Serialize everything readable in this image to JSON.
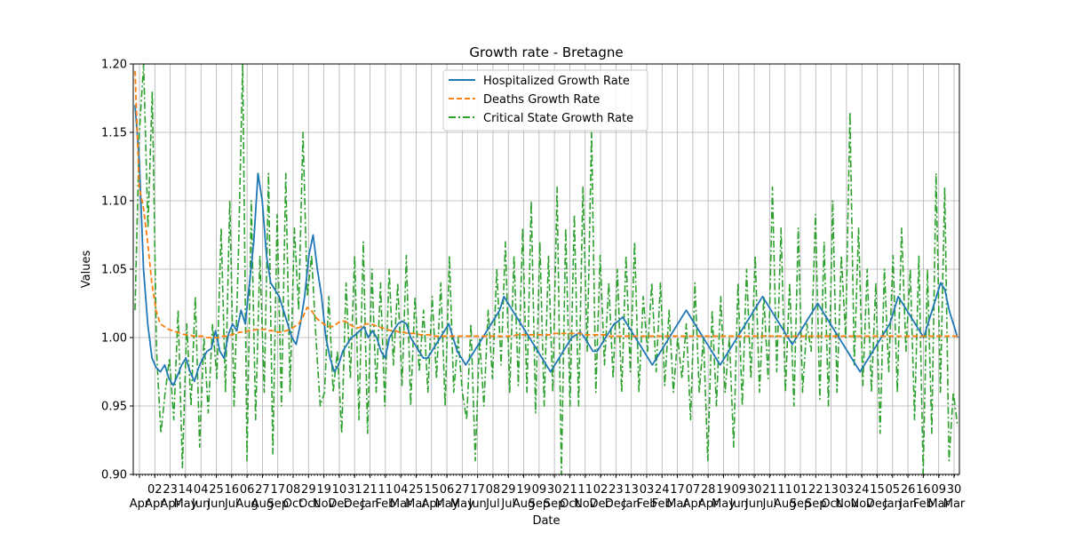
{
  "chart_data": {
    "type": "line",
    "title": "Growth rate - Bretagne",
    "xlabel": "Date",
    "ylabel": "Values",
    "ylim": [
      0.9,
      1.2
    ],
    "yticks": [
      "0.90",
      "0.95",
      "1.00",
      "1.05",
      "1.10",
      "1.15",
      "1.20"
    ],
    "grid": true,
    "legend_position": "top-center",
    "x_tick_labels": [
      {
        "day": "",
        "month": "Apr"
      },
      {
        "day": "02",
        "month": "Apr"
      },
      {
        "day": "23",
        "month": "Apr"
      },
      {
        "day": "14",
        "month": "May"
      },
      {
        "day": "04",
        "month": "Jun"
      },
      {
        "day": "25",
        "month": "Jun"
      },
      {
        "day": "16",
        "month": "Jul"
      },
      {
        "day": "06",
        "month": "Aug"
      },
      {
        "day": "27",
        "month": "Aug"
      },
      {
        "day": "17",
        "month": "Sep"
      },
      {
        "day": "08",
        "month": "Oct"
      },
      {
        "day": "29",
        "month": "Oct"
      },
      {
        "day": "19",
        "month": "Nov"
      },
      {
        "day": "10",
        "month": "Dec"
      },
      {
        "day": "31",
        "month": "Dec"
      },
      {
        "day": "21",
        "month": "Jan"
      },
      {
        "day": "11",
        "month": "Feb"
      },
      {
        "day": "04",
        "month": "Mar"
      },
      {
        "day": "25",
        "month": "Mar"
      },
      {
        "day": "15",
        "month": "Apr"
      },
      {
        "day": "06",
        "month": "May"
      },
      {
        "day": "27",
        "month": "May"
      },
      {
        "day": "17",
        "month": "Jun"
      },
      {
        "day": "08",
        "month": "Jul"
      },
      {
        "day": "29",
        "month": "Jul"
      },
      {
        "day": "19",
        "month": "Aug"
      },
      {
        "day": "09",
        "month": "Sep"
      },
      {
        "day": "30",
        "month": "Sep"
      },
      {
        "day": "21",
        "month": "Oct"
      },
      {
        "day": "11",
        "month": "Nov"
      },
      {
        "day": "02",
        "month": "Dec"
      },
      {
        "day": "23",
        "month": "Dec"
      },
      {
        "day": "13",
        "month": "Jan"
      },
      {
        "day": "03",
        "month": "Feb"
      },
      {
        "day": "24",
        "month": "Feb"
      },
      {
        "day": "17",
        "month": "Mar"
      },
      {
        "day": "07",
        "month": "Apr"
      },
      {
        "day": "28",
        "month": "Apr"
      },
      {
        "day": "19",
        "month": "May"
      },
      {
        "day": "09",
        "month": "Jun"
      },
      {
        "day": "30",
        "month": "Jun"
      },
      {
        "day": "21",
        "month": "Jul"
      },
      {
        "day": "11",
        "month": "Aug"
      },
      {
        "day": "01",
        "month": "Sep"
      },
      {
        "day": "22",
        "month": "Sep"
      },
      {
        "day": "13",
        "month": "Oct"
      },
      {
        "day": "03",
        "month": "Nov"
      },
      {
        "day": "24",
        "month": "Nov"
      },
      {
        "day": "15",
        "month": "Dec"
      },
      {
        "day": "05",
        "month": "Jan"
      },
      {
        "day": "26",
        "month": "Jan"
      },
      {
        "day": "16",
        "month": "Feb"
      },
      {
        "day": "09",
        "month": "Mar"
      },
      {
        "day": "30",
        "month": "Mar"
      }
    ],
    "series": [
      {
        "name": "Hospitalized Growth Rate",
        "color": "#1f77b4",
        "style": "solid",
        "values": [
          1.17,
          1.13,
          1.05,
          1.01,
          0.985,
          0.978,
          0.975,
          0.98,
          0.97,
          0.965,
          0.972,
          0.98,
          0.985,
          0.975,
          0.968,
          0.978,
          0.985,
          0.99,
          0.992,
          1.005,
          0.99,
          0.985,
          1.002,
          1.01,
          1.005,
          1.02,
          1.01,
          1.04,
          1.07,
          1.12,
          1.1,
          1.06,
          1.04,
          1.035,
          1.03,
          1.02,
          1.01,
          1.0,
          0.995,
          1.01,
          1.03,
          1.06,
          1.075,
          1.05,
          1.03,
          1.0,
          0.985,
          0.975,
          0.98,
          0.99,
          0.995,
          1.0,
          1.002,
          1.005,
          1.008,
          1.0,
          1.005,
          1.0,
          0.99,
          0.985,
          1.0,
          1.005,
          1.01,
          1.012,
          1.01,
          1.0,
          0.995,
          0.99,
          0.985,
          0.985,
          0.99,
          0.995,
          1.0,
          1.005,
          1.01,
          1.0,
          0.99,
          0.985,
          0.98,
          0.985,
          0.99,
          0.995,
          1.0,
          1.005,
          1.01,
          1.015,
          1.02,
          1.03,
          1.025,
          1.02,
          1.015,
          1.01,
          1.005,
          1.0,
          0.995,
          0.99,
          0.985,
          0.98,
          0.975,
          0.98,
          0.985,
          0.99,
          0.995,
          1.0,
          1.002,
          1.004,
          1.0,
          0.995,
          0.99,
          0.99,
          0.995,
          1.0,
          1.005,
          1.01,
          1.012,
          1.015,
          1.01,
          1.005,
          1.0,
          0.995,
          0.99,
          0.985,
          0.98,
          0.985,
          0.99,
          0.995,
          1.0,
          1.005,
          1.01,
          1.015,
          1.02,
          1.015,
          1.01,
          1.005,
          1.0,
          0.995,
          0.99,
          0.985,
          0.98,
          0.985,
          0.99,
          0.995,
          1.0,
          1.005,
          1.01,
          1.015,
          1.02,
          1.025,
          1.03,
          1.025,
          1.02,
          1.015,
          1.01,
          1.005,
          1.0,
          0.995,
          1.0,
          1.005,
          1.01,
          1.015,
          1.02,
          1.025,
          1.02,
          1.015,
          1.01,
          1.005,
          1.0,
          0.995,
          0.99,
          0.985,
          0.98,
          0.975,
          0.98,
          0.985,
          0.99,
          0.995,
          1.0,
          1.005,
          1.01,
          1.02,
          1.03,
          1.025,
          1.02,
          1.015,
          1.01,
          1.005,
          1.0,
          1.01,
          1.02,
          1.03,
          1.04,
          1.035,
          1.02,
          1.01,
          1.0
        ]
      },
      {
        "name": "Deaths Growth Rate",
        "color": "#ff7f0e",
        "style": "dashed",
        "values": [
          1.195,
          1.11,
          1.095,
          1.07,
          1.04,
          1.02,
          1.01,
          1.008,
          1.006,
          1.005,
          1.004,
          1.003,
          1.002,
          1.002,
          1.001,
          1.001,
          1.001,
          1.0,
          1.0,
          1.0,
          1.0,
          1.001,
          1.001,
          1.002,
          1.003,
          1.004,
          1.004,
          1.005,
          1.005,
          1.006,
          1.006,
          1.006,
          1.005,
          1.005,
          1.004,
          1.004,
          1.005,
          1.006,
          1.008,
          1.01,
          1.015,
          1.022,
          1.02,
          1.015,
          1.012,
          1.01,
          1.008,
          1.008,
          1.01,
          1.012,
          1.012,
          1.01,
          1.008,
          1.007,
          1.008,
          1.01,
          1.01,
          1.009,
          1.008,
          1.007,
          1.006,
          1.005,
          1.005,
          1.004,
          1.004,
          1.003,
          1.003,
          1.003,
          1.002,
          1.002,
          1.002,
          1.001,
          1.001,
          1.001,
          1.001,
          1.001,
          1.001,
          1.001,
          1.001,
          1.001,
          1.001,
          1.001,
          1.001,
          1.001,
          1.001,
          1.001,
          1.001,
          1.001,
          1.001,
          1.001,
          1.001,
          1.002,
          1.002,
          1.002,
          1.002,
          1.002,
          1.002,
          1.002,
          1.002,
          1.002,
          1.003,
          1.003,
          1.003,
          1.003,
          1.003,
          1.003,
          1.003,
          1.002,
          1.002,
          1.002,
          1.002,
          1.002,
          1.002,
          1.001,
          1.001,
          1.001,
          1.001,
          1.001,
          1.001,
          1.001,
          1.001,
          1.001,
          1.001,
          1.001,
          1.001,
          1.001,
          1.001,
          1.001,
          1.001,
          1.001,
          1.001,
          1.001,
          1.001,
          1.001,
          1.001,
          1.001,
          1.001,
          1.001,
          1.001,
          1.001,
          1.001,
          1.001,
          1.001,
          1.001,
          1.001,
          1.001,
          1.001,
          1.001,
          1.001,
          1.001,
          1.001,
          1.001,
          1.001,
          1.001,
          1.001,
          1.001,
          1.001,
          1.001,
          1.001,
          1.001,
          1.001,
          1.001,
          1.001,
          1.001,
          1.001,
          1.001,
          1.001,
          1.001,
          1.001,
          1.001,
          1.001,
          1.001,
          1.001,
          1.001,
          1.001,
          1.001,
          1.001,
          1.001,
          1.001,
          1.001,
          1.001,
          1.001,
          1.001,
          1.001,
          1.001,
          1.001,
          1.001,
          1.001,
          1.001,
          1.001,
          1.001,
          1.001,
          1.001,
          1.001,
          1.001,
          1.001,
          1.001
        ]
      },
      {
        "name": "Critical State Growth Rate",
        "color": "#2ca02c",
        "style": "dashdot",
        "values": [
          1.02,
          1.15,
          1.2,
          1.08,
          1.18,
          0.99,
          0.93,
          0.96,
          0.985,
          0.94,
          1.02,
          0.905,
          1.01,
          0.95,
          1.03,
          0.92,
          1.0,
          0.945,
          1.01,
          0.97,
          1.08,
          0.96,
          1.1,
          0.95,
          1.06,
          1.2,
          0.91,
          1.1,
          0.94,
          1.06,
          0.96,
          1.12,
          0.915,
          1.09,
          0.95,
          1.12,
          0.96,
          1.08,
          1.02,
          1.15,
          1.03,
          1.06,
          1.0,
          0.95,
          0.96,
          1.03,
          0.96,
          0.99,
          0.93,
          1.04,
          0.97,
          1.06,
          0.94,
          1.07,
          0.93,
          1.05,
          0.96,
          1.04,
          0.95,
          1.05,
          0.98,
          1.04,
          0.965,
          1.06,
          0.95,
          1.03,
          0.975,
          1.02,
          0.96,
          1.03,
          0.97,
          1.04,
          0.95,
          1.06,
          0.96,
          1.0,
          0.96,
          0.94,
          1.01,
          0.91,
          1.0,
          0.95,
          1.02,
          0.97,
          1.05,
          0.98,
          1.07,
          0.96,
          1.06,
          0.965,
          1.08,
          0.96,
          1.1,
          0.945,
          1.07,
          0.95,
          1.06,
          0.96,
          1.11,
          0.9,
          1.08,
          0.95,
          1.09,
          0.95,
          1.11,
          0.99,
          1.15,
          0.96,
          1.06,
          0.98,
          1.04,
          0.97,
          1.05,
          0.96,
          1.06,
          0.975,
          1.07,
          0.96,
          1.03,
          0.99,
          1.04,
          0.975,
          1.04,
          0.965,
          1.02,
          0.96,
          1.0,
          0.97,
          1.01,
          0.94,
          1.04,
          0.96,
          1.0,
          0.91,
          1.02,
          0.95,
          1.03,
          0.96,
          1.0,
          0.92,
          1.04,
          0.95,
          1.05,
          0.97,
          1.06,
          0.96,
          1.03,
          0.97,
          1.11,
          0.975,
          1.08,
          0.96,
          1.04,
          0.95,
          1.08,
          0.96,
          1.01,
          0.99,
          1.09,
          0.955,
          1.07,
          0.95,
          1.1,
          0.96,
          1.06,
          1.0,
          1.165,
          0.98,
          1.08,
          0.965,
          1.05,
          0.96,
          1.04,
          0.93,
          1.05,
          0.975,
          1.06,
          0.96,
          1.08,
          0.99,
          1.05,
          0.94,
          1.06,
          0.9,
          1.05,
          0.93,
          1.12,
          0.96,
          1.11,
          0.91,
          0.96,
          0.935
        ]
      }
    ]
  }
}
